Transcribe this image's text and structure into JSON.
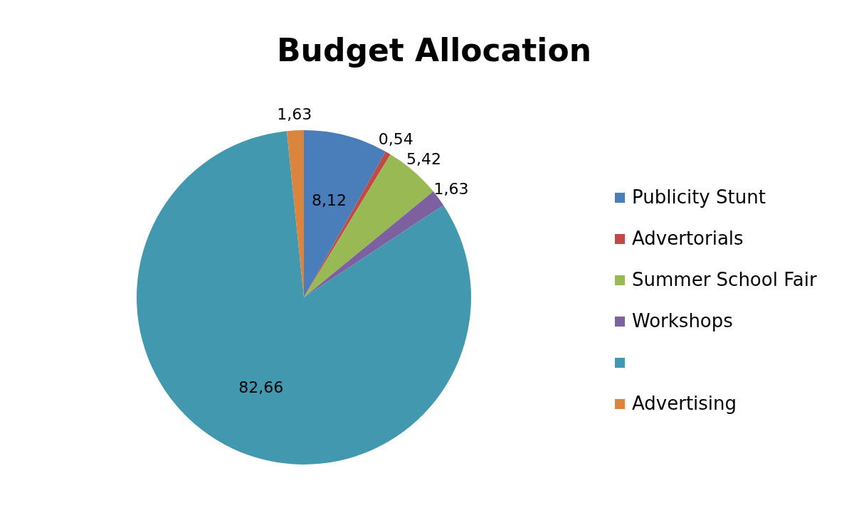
{
  "chart_data": {
    "type": "pie",
    "title": "Budget Allocation",
    "categories": [
      "Publicity Stunt",
      "Advertorials",
      "Summer School Fair",
      "Workshops",
      null,
      "Advertising"
    ],
    "values": [
      8.12,
      0.54,
      5.42,
      1.63,
      82.66,
      1.63
    ],
    "colors": [
      "#4a7ebb",
      "#be4b48",
      "#98b954",
      "#7d60a0",
      "#4198af",
      "#db843d"
    ],
    "value_labels": [
      "8,12",
      "0,54",
      "5,42",
      "1,63",
      "82,66",
      "1,63"
    ],
    "legend": "right"
  }
}
